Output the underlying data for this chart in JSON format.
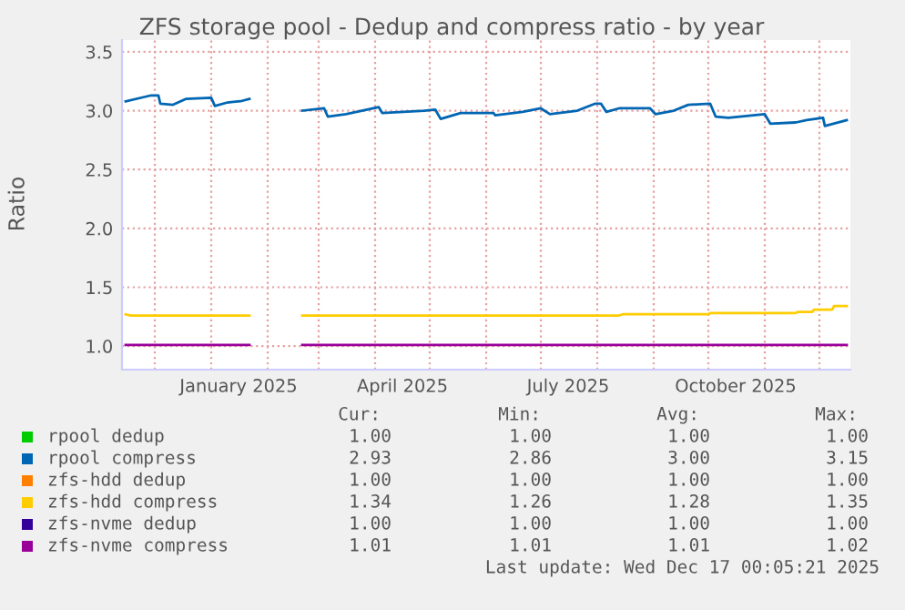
{
  "chart_data": {
    "type": "line",
    "title": "ZFS storage pool - Dedup and compress ratio - by year",
    "ylabel": "Ratio",
    "x": [
      "2024-11-15",
      "2025-01-22",
      "2025-02-05",
      "2025-02-20",
      "2025-12-16"
    ],
    "series": [
      {
        "name": "rpool dedup",
        "color": "#00cc00",
        "values": [
          null,
          null,
          null,
          null,
          null
        ]
      },
      {
        "name": "rpool compress",
        "color": "#0066b3",
        "x": [
          "2024-11-15",
          "2024-11-29",
          "2024-12-03",
          "2024-12-04",
          "2024-12-11",
          "2024-12-18",
          "2025-01-01",
          "2025-01-03",
          "2025-01-10",
          "2025-01-17",
          "2025-01-22",
          "2025-02-05",
          "2025-02-20",
          "2025-03-04",
          "2025-03-06",
          "2025-03-16",
          "2025-04-03",
          "2025-04-05",
          "2025-04-28",
          "2025-05-04",
          "2025-05-07",
          "2025-05-18",
          "2025-06-01",
          "2025-06-05",
          "2025-06-06",
          "2025-06-21",
          "2025-07-01",
          "2025-07-06",
          "2025-07-21",
          "2025-07-31",
          "2025-08-03",
          "2025-08-06",
          "2025-08-13",
          "2025-08-30",
          "2025-09-02",
          "2025-09-12",
          "2025-09-20",
          "2025-10-02",
          "2025-10-05",
          "2025-10-12",
          "2025-11-01",
          "2025-11-04",
          "2025-11-18",
          "2025-11-24",
          "2025-12-03",
          "2025-12-04",
          "2025-12-16"
        ],
        "values": [
          3.08,
          3.13,
          3.13,
          3.06,
          3.05,
          3.1,
          3.11,
          3.04,
          3.07,
          3.08,
          3.1,
          null,
          3.0,
          3.02,
          2.95,
          2.97,
          3.03,
          2.98,
          3.0,
          3.01,
          2.93,
          2.98,
          2.98,
          2.98,
          2.96,
          2.99,
          3.02,
          2.97,
          3.0,
          3.06,
          3.06,
          2.99,
          3.02,
          3.02,
          2.97,
          3.0,
          3.05,
          3.06,
          2.95,
          2.94,
          2.97,
          2.89,
          2.9,
          2.92,
          2.94,
          2.87,
          2.92
        ]
      },
      {
        "name": "zfs-hdd dedup",
        "color": "#ff8000",
        "values": [
          null,
          null,
          null,
          null,
          null
        ]
      },
      {
        "name": "zfs-hdd compress",
        "color": "#ffcc00",
        "x": [
          "2024-11-15",
          "2024-11-18",
          "2025-01-22",
          "2025-02-05",
          "2025-02-20",
          "2025-08-13",
          "2025-08-15",
          "2025-10-01",
          "2025-10-02",
          "2025-11-18",
          "2025-11-19",
          "2025-11-27",
          "2025-11-28",
          "2025-12-08",
          "2025-12-09",
          "2025-12-16"
        ],
        "values": [
          1.27,
          1.26,
          1.26,
          null,
          1.26,
          1.26,
          1.27,
          1.27,
          1.28,
          1.28,
          1.29,
          1.29,
          1.31,
          1.31,
          1.34,
          1.34
        ]
      },
      {
        "name": "zfs-nvme dedup",
        "color": "#330099",
        "values": [
          null,
          null,
          null,
          null,
          null
        ]
      },
      {
        "name": "zfs-nvme compress",
        "color": "#990099",
        "values": [
          1.01,
          1.01,
          null,
          1.01,
          1.01
        ]
      }
    ],
    "xlim": [
      "2024-11-13",
      "2025-12-18"
    ],
    "xticks": [
      {
        "value": "2024-12-01",
        "label": null
      },
      {
        "value": "2025-01-01",
        "label": null
      },
      {
        "value": "2025-01-16",
        "label": "January 2025"
      },
      {
        "value": "2025-02-01",
        "label": null
      },
      {
        "value": "2025-03-01",
        "label": null
      },
      {
        "value": "2025-04-01",
        "label": null
      },
      {
        "value": "2025-04-16",
        "label": "April 2025"
      },
      {
        "value": "2025-05-01",
        "label": null
      },
      {
        "value": "2025-06-01",
        "label": null
      },
      {
        "value": "2025-07-01",
        "label": null
      },
      {
        "value": "2025-07-16",
        "label": "July 2025"
      },
      {
        "value": "2025-08-01",
        "label": null
      },
      {
        "value": "2025-09-01",
        "label": null
      },
      {
        "value": "2025-10-01",
        "label": null
      },
      {
        "value": "2025-10-16",
        "label": "October 2025"
      },
      {
        "value": "2025-11-01",
        "label": null
      },
      {
        "value": "2025-12-01",
        "label": null
      }
    ],
    "ylim": [
      0.8,
      3.6
    ],
    "yticks": [
      {
        "value": 1.0,
        "label": "1.0"
      },
      {
        "value": 1.5,
        "label": "1.5"
      },
      {
        "value": 2.0,
        "label": "2.0"
      },
      {
        "value": 2.5,
        "label": "2.5"
      },
      {
        "value": 3.0,
        "label": "3.0"
      },
      {
        "value": 3.5,
        "label": "3.5"
      }
    ],
    "grid": true,
    "legend": "bottom",
    "line_style": "solid",
    "marker": "none",
    "annotations": [
      "Cur:",
      "Min:",
      "Avg:",
      "Max:",
      "1.00",
      "1.00",
      "1.00",
      "1.00",
      "2.93",
      "2.86",
      "3.00",
      "3.15",
      "1.00",
      "1.00",
      "1.00",
      "1.00",
      "1.34",
      "1.26",
      "1.28",
      "1.35",
      "1.00",
      "1.00",
      "1.00",
      "1.00",
      "1.01",
      "1.01",
      "1.01",
      "1.02",
      "Last update: Wed Dec 17 00:05:21 2025"
    ]
  }
}
